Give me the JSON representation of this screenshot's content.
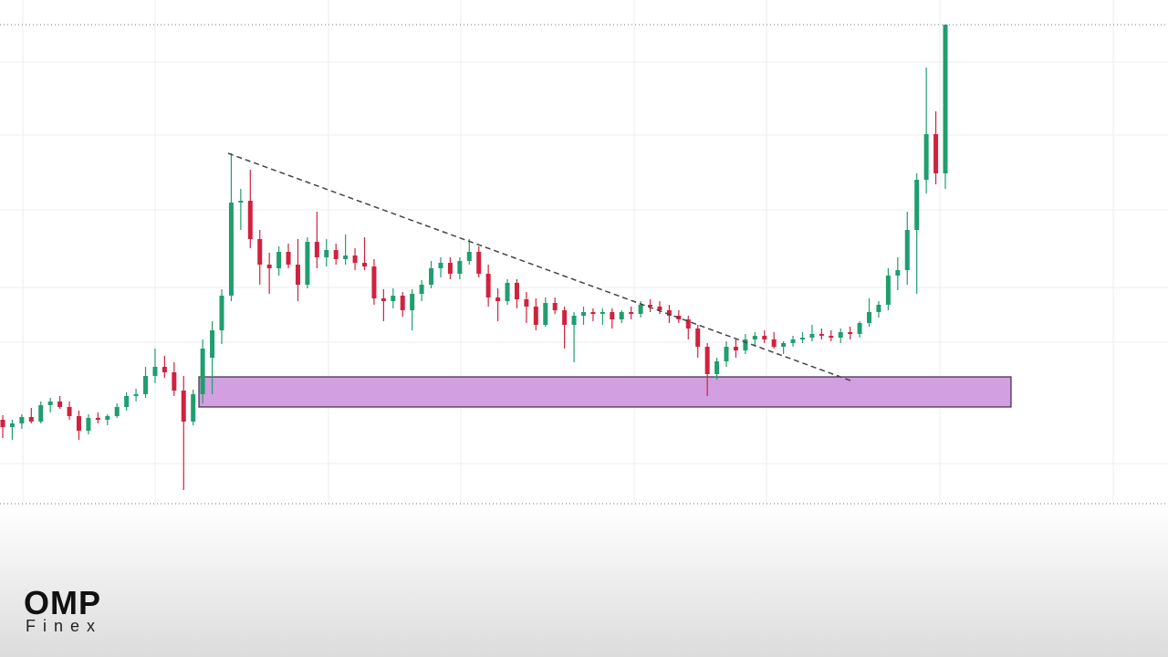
{
  "logo": {
    "name": "OMP",
    "tagline": "Finex"
  },
  "chart_data": {
    "type": "candlestick",
    "up_color": "#1f9e6e",
    "down_color": "#d0223f",
    "ylim": [
      0,
      525
    ],
    "open": [
      92,
      84,
      88,
      95,
      90,
      108,
      112,
      106,
      96,
      80,
      94,
      92,
      96,
      106,
      118,
      120,
      140,
      150,
      144,
      124,
      90,
      120,
      160,
      190,
      228,
      330,
      332,
      290,
      262,
      258,
      276,
      262,
      240,
      287,
      270,
      278,
      268,
      272,
      264,
      260,
      225,
      222,
      228,
      212,
      230,
      240,
      258,
      264,
      252,
      266,
      276,
      252,
      226,
      222,
      242,
      224,
      216,
      196,
      220,
      212,
      196,
      206,
      210,
      208,
      210,
      202,
      210,
      208,
      218,
      216,
      212,
      206,
      202,
      192,
      172,
      142,
      156,
      172,
      168,
      180,
      184,
      180,
      172,
      176,
      180,
      182,
      186,
      184,
      182,
      188,
      186,
      198,
      210,
      218,
      250,
      256,
      300,
      355,
      405,
      362
    ],
    "high": [
      97,
      92,
      98,
      105,
      112,
      116,
      118,
      112,
      102,
      98,
      100,
      98,
      110,
      122,
      126,
      150,
      170,
      162,
      155,
      140,
      125,
      180,
      200,
      235,
      384,
      345,
      366,
      300,
      275,
      282,
      285,
      290,
      292,
      320,
      290,
      285,
      295,
      280,
      292,
      268,
      235,
      236,
      232,
      235,
      245,
      266,
      270,
      270,
      270,
      290,
      282,
      262,
      236,
      246,
      246,
      232,
      225,
      226,
      226,
      216,
      210,
      216,
      214,
      214,
      214,
      212,
      216,
      222,
      224,
      222,
      218,
      212,
      206,
      196,
      176,
      160,
      178,
      180,
      186,
      188,
      190,
      188,
      178,
      184,
      188,
      196,
      192,
      190,
      192,
      194,
      200,
      225,
      222,
      258,
      270,
      320,
      362,
      478,
      430,
      525
    ],
    "low": [
      72,
      70,
      82,
      88,
      88,
      100,
      104,
      92,
      70,
      76,
      88,
      86,
      94,
      102,
      112,
      116,
      132,
      138,
      118,
      15,
      86,
      110,
      120,
      175,
      222,
      300,
      280,
      240,
      230,
      250,
      258,
      222,
      236,
      258,
      260,
      262,
      262,
      256,
      256,
      218,
      200,
      214,
      205,
      190,
      222,
      236,
      248,
      246,
      246,
      262,
      248,
      216,
      200,
      218,
      214,
      198,
      190,
      194,
      208,
      170,
      155,
      196,
      200,
      196,
      192,
      198,
      202,
      204,
      210,
      208,
      198,
      198,
      180,
      160,
      118,
      136,
      150,
      160,
      164,
      172,
      176,
      170,
      164,
      172,
      176,
      178,
      180,
      178,
      176,
      180,
      182,
      194,
      204,
      212,
      234,
      240,
      230,
      340,
      350,
      345
    ],
    "close": [
      84,
      88,
      95,
      90,
      108,
      112,
      106,
      96,
      80,
      94,
      92,
      96,
      106,
      118,
      120,
      140,
      150,
      144,
      124,
      90,
      120,
      170,
      190,
      228,
      330,
      332,
      290,
      262,
      258,
      276,
      262,
      240,
      287,
      270,
      278,
      268,
      272,
      264,
      260,
      225,
      222,
      228,
      212,
      230,
      240,
      258,
      264,
      252,
      266,
      276,
      252,
      226,
      222,
      242,
      224,
      216,
      196,
      220,
      212,
      196,
      206,
      210,
      208,
      210,
      202,
      210,
      208,
      218,
      216,
      212,
      206,
      202,
      192,
      172,
      142,
      156,
      172,
      168,
      180,
      184,
      180,
      172,
      176,
      180,
      182,
      186,
      184,
      182,
      188,
      186,
      198,
      210,
      218,
      250,
      256,
      300,
      355,
      405,
      362,
      525
    ]
  }
}
